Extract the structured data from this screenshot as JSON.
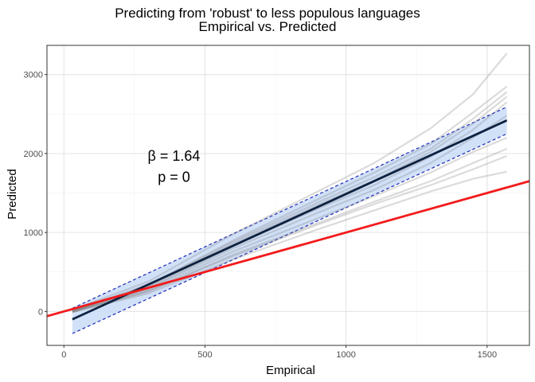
{
  "chart_data": {
    "type": "line",
    "title": "Predicting from 'robust' to less populous languages",
    "subtitle": "Empirical vs. Predicted",
    "xlabel": "Empirical",
    "ylabel": "Predicted",
    "xlim": [
      -60,
      1650
    ],
    "ylim": [
      -430,
      3370
    ],
    "x_ticks": [
      0,
      500,
      1000,
      1500
    ],
    "y_ticks": [
      0,
      1000,
      2000,
      3000
    ],
    "x_tick_labels": [
      "0",
      "500",
      "1000",
      "1500"
    ],
    "y_tick_labels": [
      "0",
      "1000",
      "2000",
      "3000"
    ],
    "grid": true,
    "annotation": {
      "beta_text": "β = 1.64",
      "p_text": "p = 0",
      "beta_position": [
        390,
        1910
      ],
      "p_position": [
        390,
        1640
      ]
    },
    "fit_line": {
      "x": [
        30,
        1570
      ],
      "y": [
        -100,
        2420
      ],
      "color": "#0d2240"
    },
    "confidence_band": {
      "x": [
        30,
        1570
      ],
      "upper": [
        40,
        2590
      ],
      "lower": [
        -280,
        2250
      ],
      "fill": "#c9dcf7",
      "border_color": "#1f2bb8"
    },
    "identity_line": {
      "x": [
        -60,
        1650
      ],
      "y": [
        -60,
        1650
      ],
      "color": "#f21b1b"
    },
    "series": [
      {
        "x": [
          30,
          300,
          600,
          900,
          1100,
          1300,
          1450,
          1570
        ],
        "y": [
          20,
          380,
          980,
          1520,
          1880,
          2320,
          2750,
          3270
        ]
      },
      {
        "x": [
          30,
          300,
          600,
          900,
          1100,
          1300,
          1450,
          1570
        ],
        "y": [
          10,
          340,
          900,
          1420,
          1760,
          2120,
          2520,
          2850
        ]
      },
      {
        "x": [
          30,
          300,
          600,
          900,
          1100,
          1300,
          1450,
          1570
        ],
        "y": [
          0,
          330,
          880,
          1380,
          1700,
          2060,
          2440,
          2780
        ]
      },
      {
        "x": [
          30,
          300,
          600,
          900,
          1100,
          1300,
          1450,
          1570
        ],
        "y": [
          5,
          320,
          860,
          1350,
          1660,
          2020,
          2380,
          2720
        ]
      },
      {
        "x": [
          30,
          300,
          600,
          900,
          1100,
          1300,
          1450,
          1570
        ],
        "y": [
          0,
          300,
          830,
          1300,
          1600,
          1960,
          2300,
          2650
        ]
      },
      {
        "x": [
          30,
          300,
          600,
          900,
          1100,
          1300,
          1450,
          1570
        ],
        "y": [
          -5,
          290,
          800,
          1250,
          1540,
          1880,
          2200,
          2480
        ]
      },
      {
        "x": [
          30,
          300,
          600,
          900,
          1100,
          1300,
          1450,
          1570
        ],
        "y": [
          0,
          270,
          760,
          1180,
          1460,
          1760,
          2020,
          2200
        ]
      },
      {
        "x": [
          30,
          300,
          600,
          900,
          1100,
          1300,
          1450,
          1570
        ],
        "y": [
          -10,
          250,
          720,
          1120,
          1390,
          1650,
          1880,
          2060
        ]
      },
      {
        "x": [
          30,
          300,
          600,
          900,
          1100,
          1300,
          1450,
          1570
        ],
        "y": [
          -10,
          230,
          660,
          1040,
          1280,
          1520,
          1680,
          1770
        ]
      },
      {
        "x": [
          30,
          300,
          600,
          900,
          1100,
          1300,
          1450,
          1570
        ],
        "y": [
          0,
          260,
          700,
          1100,
          1360,
          1600,
          1800,
          1970
        ]
      }
    ],
    "colors": {
      "series_line": "#7f7f7f",
      "panel_border": "#333333",
      "grid_major": "#e5e5e5",
      "grid_minor": "#f2f2f2"
    }
  }
}
